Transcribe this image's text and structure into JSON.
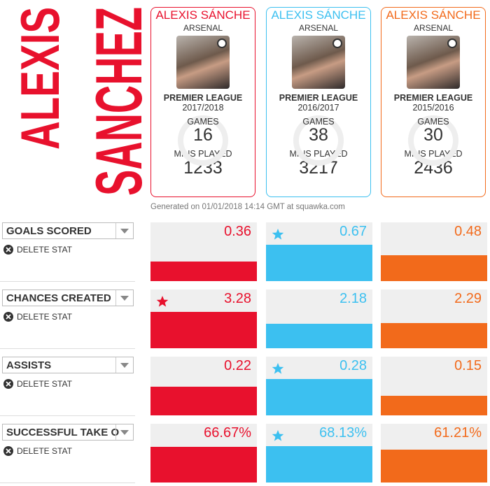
{
  "player": {
    "first": "ALEXIS",
    "last": "SANCHEZ"
  },
  "cards": [
    {
      "name": "ALEXIS SÁNCHE",
      "team": "ARSENAL",
      "league": "PREMIER LEAGUE",
      "season": "2017/2018",
      "games_label": "GAMES",
      "games": 16,
      "mins_label": "MINS PLAYED",
      "mins": 1233,
      "color": "#e8112d"
    },
    {
      "name": "ALEXIS SÁNCHE",
      "team": "ARSENAL",
      "league": "PREMIER LEAGUE",
      "season": "2016/2017",
      "games_label": "GAMES",
      "games": 38,
      "mins_label": "MINS PLAYED",
      "mins": 3217,
      "color": "#3cc0f0"
    },
    {
      "name": "ALEXIS SÁNCHE",
      "team": "ARSENAL",
      "league": "PREMIER LEAGUE",
      "season": "2015/2016",
      "games_label": "GAMES",
      "games": 30,
      "mins_label": "MINS PLAYED",
      "mins": 2436,
      "color": "#f26a1b"
    }
  ],
  "footer": "Generated on 01/01/2018 14:14 GMT at squawka.com",
  "delete_label": "DELETE STAT",
  "stats": [
    {
      "label": "GOALS SCORED",
      "values": [
        0.36,
        0.67,
        0.48
      ]
    },
    {
      "label": "CHANCES CREATED",
      "values": [
        3.28,
        2.18,
        2.29
      ]
    },
    {
      "label": "ASSISTS",
      "values": [
        0.22,
        0.28,
        0.15
      ]
    },
    {
      "label": "SUCCESSFUL TAKE O",
      "values": [
        66.67,
        68.13,
        61.21
      ],
      "value_labels": [
        "66.67%",
        "68.13%",
        "61.21%"
      ]
    }
  ]
}
